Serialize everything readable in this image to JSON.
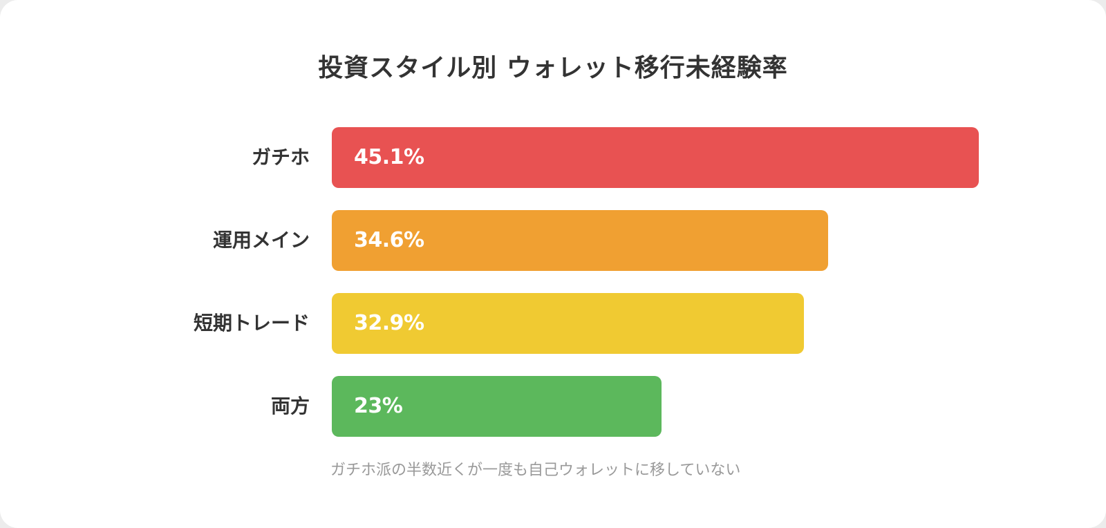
{
  "chart_data": {
    "type": "bar",
    "orientation": "horizontal",
    "title": "投資スタイル別 ウォレット移行未経験率",
    "categories": [
      "ガチホ",
      "運用メイン",
      "短期トレード",
      "両方"
    ],
    "values": [
      45.1,
      34.6,
      32.9,
      23
    ],
    "value_labels": [
      "45.1%",
      "34.6%",
      "32.9%",
      "23%"
    ],
    "colors": [
      "#e85252",
      "#f0a032",
      "#f0ca32",
      "#5cb85c"
    ],
    "annotation": "ガチホ派の半数近くが一度も自己ウォレットに移していない",
    "grid": false,
    "legend": "none",
    "xlim": [
      0,
      45.1
    ]
  }
}
